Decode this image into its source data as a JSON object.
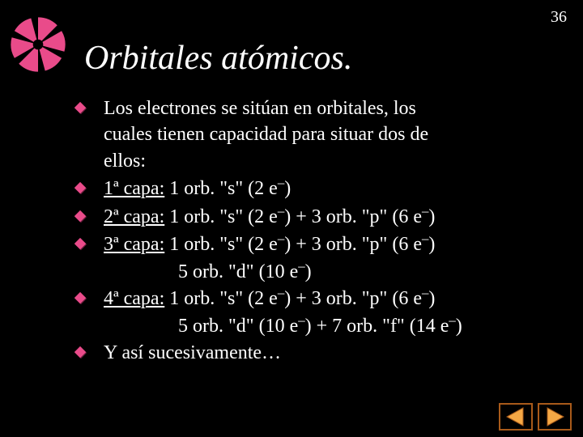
{
  "page_number": "36",
  "title": "Orbitales atómicos.",
  "decoration": {
    "segment_colors": [
      "#e94b8a",
      "#e94b8a",
      "#e94b8a",
      "#e94b8a",
      "#e94b8a",
      "#e94b8a"
    ],
    "gap_color": "#000000",
    "center_color": "#000000"
  },
  "bullet_style": {
    "fill": "#e94b8a",
    "shadow": "#6a1f3e"
  },
  "bullets": [
    {
      "lines": [
        [
          {
            "t": "Los electrones se sitúan en orbitales, los"
          }
        ],
        [
          {
            "t": "cuales tienen capacidad para situar dos de"
          }
        ],
        [
          {
            "t": "ellos:"
          }
        ]
      ]
    },
    {
      "lines": [
        [
          {
            "t": "1ª capa:",
            "u": true
          },
          {
            "t": " 1 orb. \"s\" (2 e"
          },
          {
            "t": "–",
            "sup": true
          },
          {
            "t": ")"
          }
        ]
      ]
    },
    {
      "lines": [
        [
          {
            "t": "2ª capa:",
            "u": true
          },
          {
            "t": " 1 orb. \"s\" (2 e"
          },
          {
            "t": "–",
            "sup": true
          },
          {
            "t": ") + 3 orb. \"p\" (6 e"
          },
          {
            "t": "–",
            "sup": true
          },
          {
            "t": ")"
          }
        ]
      ]
    },
    {
      "lines": [
        [
          {
            "t": "3ª capa:",
            "u": true
          },
          {
            "t": " 1 orb. \"s\" (2 e"
          },
          {
            "t": "–",
            "sup": true
          },
          {
            "t": ") + 3 orb. \"p\" (6 e"
          },
          {
            "t": "–",
            "sup": true
          },
          {
            "t": ")"
          }
        ]
      ],
      "cont": [
        [
          {
            "t": "5 orb. \"d\" (10 e"
          },
          {
            "t": "–",
            "sup": true
          },
          {
            "t": ")"
          }
        ]
      ]
    },
    {
      "lines": [
        [
          {
            "t": "4ª capa:",
            "u": true
          },
          {
            "t": " 1 orb. \"s\" (2 e"
          },
          {
            "t": "–",
            "sup": true
          },
          {
            "t": ") + 3 orb. \"p\" (6 e"
          },
          {
            "t": "–",
            "sup": true
          },
          {
            "t": ")"
          }
        ]
      ],
      "cont": [
        [
          {
            "t": "5 orb. \"d\" (10 e"
          },
          {
            "t": "–",
            "sup": true
          },
          {
            "t": ") + 7 orb. \"f\" (14 e"
          },
          {
            "t": "–",
            "sup": true
          },
          {
            "t": ")"
          }
        ]
      ]
    },
    {
      "lines": [
        [
          {
            "t": "Y así sucesivamente…"
          }
        ]
      ]
    }
  ],
  "nav": {
    "prev_fill": "#f5a845",
    "prev_border": "#a85a1a",
    "next_fill": "#f5a845",
    "next_border": "#a85a1a"
  }
}
